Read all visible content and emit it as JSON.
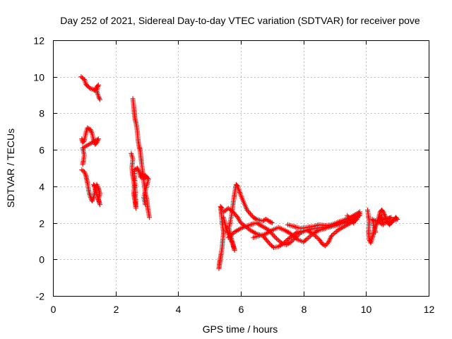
{
  "chart_data": {
    "type": "scatter",
    "title": "Day 252 of 2021, Sidereal Day-to-day VTEC variation (SDTVAR) for receiver pove",
    "xlabel": "GPS time / hours",
    "ylabel": "SDTVAR / TECUs",
    "xlim": [
      0,
      12
    ],
    "ylim": [
      -2,
      12
    ],
    "xticks": [
      0,
      2,
      4,
      6,
      8,
      10,
      12
    ],
    "yticks": [
      -2,
      0,
      2,
      4,
      6,
      8,
      10,
      12
    ],
    "grid": true,
    "colors": {
      "series": "#ff0000",
      "grid": "#bfbfbf",
      "axis": "#000000"
    },
    "series": [
      {
        "name": "SDTVAR",
        "marker": "plus",
        "traces": [
          [
            [
              0.9,
              10.0
            ],
            [
              1.0,
              9.85
            ],
            [
              1.05,
              9.6
            ],
            [
              1.1,
              9.5
            ],
            [
              1.2,
              9.35
            ],
            [
              1.3,
              9.3
            ],
            [
              1.35,
              9.25
            ],
            [
              1.4,
              9.45
            ],
            [
              1.45,
              9.55
            ],
            [
              1.4,
              9.2
            ],
            [
              1.45,
              8.95
            ],
            [
              1.5,
              8.75
            ]
          ],
          [
            [
              0.92,
              6.6
            ],
            [
              0.95,
              6.4
            ],
            [
              1.0,
              6.5
            ],
            [
              1.05,
              6.9
            ],
            [
              1.1,
              7.2
            ],
            [
              1.2,
              7.1
            ],
            [
              1.25,
              6.9
            ],
            [
              1.3,
              6.5
            ],
            [
              1.35,
              6.3
            ],
            [
              1.4,
              6.4
            ],
            [
              1.45,
              6.6
            ],
            [
              0.95,
              6.1
            ],
            [
              1.0,
              5.7
            ],
            [
              0.95,
              5.2
            ]
          ],
          [
            [
              0.92,
              4.9
            ],
            [
              1.0,
              4.8
            ],
            [
              1.05,
              4.6
            ],
            [
              1.1,
              4.2
            ],
            [
              1.15,
              3.7
            ],
            [
              1.2,
              3.4
            ],
            [
              1.25,
              3.2
            ],
            [
              1.3,
              3.4
            ],
            [
              1.35,
              3.8
            ],
            [
              1.4,
              4.1
            ],
            [
              1.45,
              3.9
            ],
            [
              1.5,
              3.6
            ],
            [
              1.45,
              3.3
            ],
            [
              1.5,
              3.0
            ],
            [
              1.3,
              4.1
            ],
            [
              1.35,
              4.0
            ]
          ],
          [
            [
              2.55,
              8.8
            ],
            [
              2.58,
              8.4
            ],
            [
              2.6,
              8.0
            ],
            [
              2.62,
              7.7
            ],
            [
              2.65,
              7.5
            ],
            [
              2.68,
              7.2
            ],
            [
              2.7,
              6.9
            ],
            [
              2.72,
              6.5
            ],
            [
              2.75,
              6.2
            ],
            [
              2.78,
              6.0
            ],
            [
              2.8,
              5.7
            ],
            [
              2.82,
              5.4
            ],
            [
              2.85,
              5.0
            ],
            [
              2.88,
              4.6
            ],
            [
              2.9,
              4.3
            ],
            [
              2.92,
              4.0
            ],
            [
              2.95,
              3.6
            ],
            [
              3.0,
              3.3
            ],
            [
              3.02,
              2.9
            ],
            [
              3.05,
              2.6
            ],
            [
              3.08,
              2.3
            ]
          ],
          [
            [
              2.5,
              5.8
            ],
            [
              2.55,
              5.5
            ],
            [
              2.52,
              5.0
            ],
            [
              2.55,
              4.6
            ],
            [
              2.58,
              4.3
            ],
            [
              2.6,
              4.0
            ],
            [
              2.58,
              3.6
            ],
            [
              2.62,
              3.2
            ],
            [
              2.65,
              2.8
            ],
            [
              2.6,
              4.9
            ],
            [
              2.7,
              5.0
            ],
            [
              2.75,
              4.8
            ],
            [
              2.8,
              4.5
            ],
            [
              2.85,
              4.7
            ],
            [
              2.9,
              4.4
            ],
            [
              2.95,
              4.6
            ],
            [
              3.0,
              4.5
            ],
            [
              3.05,
              4.4
            ],
            [
              2.9,
              3.4
            ],
            [
              2.95,
              3.0
            ]
          ],
          [
            [
              5.3,
              -0.5
            ],
            [
              5.32,
              -0.2
            ],
            [
              5.35,
              0.1
            ],
            [
              5.4,
              0.6
            ],
            [
              5.42,
              1.0
            ],
            [
              5.45,
              1.5
            ],
            [
              5.4,
              2.0
            ],
            [
              5.38,
              2.5
            ],
            [
              5.35,
              2.9
            ],
            [
              5.4,
              2.8
            ]
          ],
          [
            [
              5.45,
              2.3
            ],
            [
              5.5,
              1.9
            ],
            [
              5.55,
              1.6
            ],
            [
              5.6,
              1.4
            ],
            [
              5.65,
              1.2
            ],
            [
              5.7,
              1.0
            ],
            [
              5.75,
              0.8
            ],
            [
              5.8,
              0.5
            ],
            [
              5.62,
              1.7
            ],
            [
              5.7,
              2.4
            ],
            [
              5.75,
              3.0
            ],
            [
              5.8,
              3.6
            ],
            [
              5.85,
              4.1
            ],
            [
              5.9,
              4.0
            ],
            [
              6.0,
              3.5
            ],
            [
              6.1,
              3.1
            ],
            [
              6.2,
              2.7
            ],
            [
              6.3,
              2.5
            ],
            [
              6.4,
              2.3
            ],
            [
              6.5,
              2.2
            ],
            [
              6.6,
              2.15
            ],
            [
              6.7,
              2.1
            ],
            [
              6.8,
              2.2
            ],
            [
              6.9,
              2.1
            ],
            [
              7.0,
              2.0
            ]
          ],
          [
            [
              5.45,
              2.6
            ],
            [
              5.6,
              2.8
            ],
            [
              5.75,
              2.6
            ],
            [
              5.9,
              2.3
            ],
            [
              6.0,
              2.0
            ],
            [
              6.15,
              1.8
            ],
            [
              6.3,
              1.6
            ],
            [
              6.5,
              1.4
            ],
            [
              6.7,
              1.3
            ],
            [
              6.85,
              1.0
            ],
            [
              6.95,
              0.8
            ],
            [
              7.05,
              0.65
            ],
            [
              7.2,
              0.7
            ],
            [
              7.35,
              0.85
            ],
            [
              7.5,
              1.1
            ],
            [
              7.65,
              1.3
            ],
            [
              7.8,
              1.5
            ],
            [
              8.0,
              1.55
            ],
            [
              8.2,
              1.65
            ],
            [
              8.4,
              1.7
            ],
            [
              8.6,
              1.75
            ],
            [
              8.8,
              1.8
            ],
            [
              9.0,
              1.9
            ],
            [
              9.2,
              2.0
            ],
            [
              9.4,
              2.1
            ],
            [
              9.6,
              2.25
            ],
            [
              9.8,
              2.4
            ]
          ],
          [
            [
              5.6,
              1.2
            ],
            [
              5.8,
              1.5
            ],
            [
              6.0,
              1.7
            ],
            [
              6.3,
              1.9
            ],
            [
              6.5,
              2.0
            ],
            [
              6.7,
              1.8
            ],
            [
              6.9,
              1.6
            ],
            [
              7.1,
              1.2
            ],
            [
              7.3,
              0.9
            ],
            [
              7.45,
              0.8
            ],
            [
              7.6,
              0.95
            ],
            [
              7.75,
              1.2
            ],
            [
              7.9,
              1.45
            ],
            [
              8.1,
              1.6
            ],
            [
              8.3,
              1.4
            ],
            [
              8.5,
              1.1
            ],
            [
              8.6,
              0.85
            ],
            [
              8.7,
              0.75
            ],
            [
              8.8,
              0.95
            ],
            [
              8.9,
              1.3
            ],
            [
              9.1,
              1.6
            ],
            [
              9.3,
              1.8
            ],
            [
              9.5,
              2.0
            ],
            [
              9.7,
              2.2
            ]
          ],
          [
            [
              6.4,
              1.2
            ],
            [
              6.8,
              1.4
            ],
            [
              7.0,
              1.6
            ],
            [
              7.2,
              1.75
            ],
            [
              7.4,
              1.6
            ],
            [
              7.6,
              1.4
            ],
            [
              7.8,
              1.1
            ],
            [
              8.0,
              0.95
            ],
            [
              8.1,
              1.1
            ],
            [
              8.3,
              1.4
            ],
            [
              8.5,
              1.6
            ],
            [
              8.7,
              1.7
            ],
            [
              8.9,
              1.8
            ],
            [
              9.1,
              1.9
            ],
            [
              9.3,
              2.0
            ],
            [
              9.5,
              2.15
            ],
            [
              9.7,
              2.3
            ],
            [
              9.8,
              2.5
            ]
          ],
          [
            [
              7.5,
              1.9
            ],
            [
              7.7,
              1.8
            ],
            [
              7.9,
              1.7
            ],
            [
              8.1,
              1.75
            ],
            [
              8.3,
              1.8
            ],
            [
              8.5,
              1.9
            ],
            [
              8.7,
              1.85
            ],
            [
              8.9,
              1.9
            ],
            [
              9.2,
              2.1
            ],
            [
              9.5,
              2.3
            ],
            [
              9.8,
              2.6
            ],
            [
              9.7,
              2.2
            ],
            [
              9.6,
              2.0
            ],
            [
              9.4,
              2.4
            ]
          ],
          [
            [
              10.05,
              2.7
            ],
            [
              10.1,
              2.1
            ],
            [
              10.08,
              1.5
            ],
            [
              10.1,
              1.1
            ],
            [
              10.15,
              0.9
            ],
            [
              10.2,
              1.2
            ],
            [
              10.25,
              1.5
            ],
            [
              10.3,
              1.8
            ],
            [
              10.35,
              2.0
            ],
            [
              10.4,
              2.3
            ],
            [
              10.45,
              2.6
            ],
            [
              10.5,
              2.7
            ],
            [
              10.55,
              2.6
            ],
            [
              10.6,
              2.4
            ],
            [
              10.65,
              2.2
            ],
            [
              10.7,
              2.0
            ],
            [
              10.75,
              1.9
            ],
            [
              10.8,
              2.0
            ],
            [
              10.85,
              2.1
            ],
            [
              10.9,
              2.2
            ],
            [
              10.95,
              2.3
            ],
            [
              11.0,
              2.2
            ],
            [
              10.6,
              2.0
            ],
            [
              10.7,
              2.2
            ],
            [
              10.8,
              2.3
            ],
            [
              10.4,
              2.1
            ],
            [
              10.5,
              2.4
            ],
            [
              10.55,
              1.9
            ],
            [
              10.2,
              2.2
            ],
            [
              10.3,
              1.5
            ]
          ]
        ]
      }
    ]
  }
}
